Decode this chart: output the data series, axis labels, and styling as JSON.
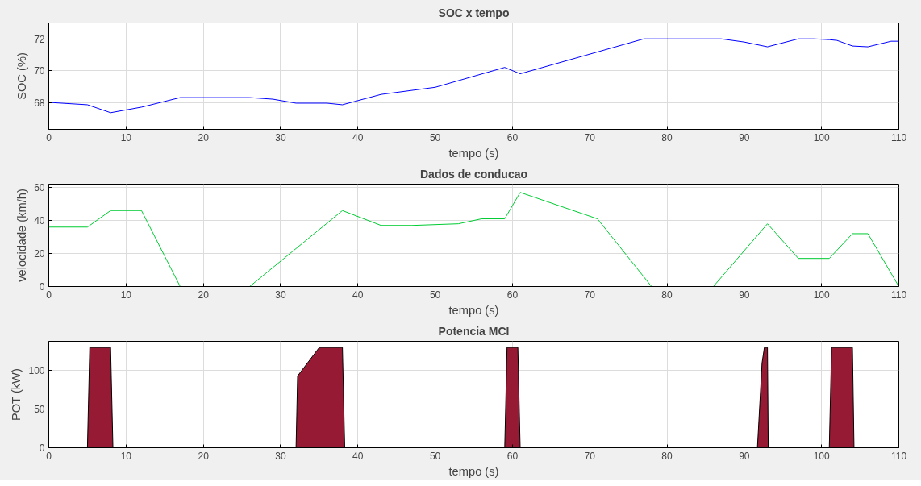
{
  "chart_data": [
    {
      "type": "line",
      "title": "SOC x tempo",
      "xlabel": "tempo (s)",
      "ylabel": "SOC (%)",
      "xlim": [
        0,
        110
      ],
      "xticks": [
        0,
        10,
        20,
        30,
        40,
        50,
        60,
        70,
        80,
        90,
        100,
        110
      ],
      "ylim": [
        66.3,
        73
      ],
      "yticks": [
        68,
        70,
        72
      ],
      "grid": true,
      "x": [
        0,
        5,
        8,
        12,
        17,
        26,
        29,
        32,
        36,
        38,
        43,
        50,
        59,
        61,
        77,
        87,
        90,
        93,
        97,
        99,
        101,
        102,
        104,
        106,
        109,
        110
      ],
      "series": [
        {
          "color": "#0000ff",
          "values": [
            68,
            67.85,
            67.35,
            67.7,
            68.3,
            68.3,
            68.2,
            67.95,
            67.95,
            67.85,
            68.5,
            68.95,
            70.2,
            69.8,
            72,
            72,
            71.8,
            71.5,
            72,
            72,
            71.95,
            71.9,
            71.55,
            71.5,
            71.85,
            71.85
          ]
        }
      ]
    },
    {
      "type": "line",
      "title": "Dados de conducao",
      "xlabel": "tempo (s)",
      "ylabel": "velocidade (km/h)",
      "xlim": [
        0,
        110
      ],
      "xticks": [
        0,
        10,
        20,
        30,
        40,
        50,
        60,
        70,
        80,
        90,
        100,
        110
      ],
      "ylim": [
        0,
        62
      ],
      "yticks": [
        0,
        20,
        40,
        60
      ],
      "grid": true,
      "x": [
        0,
        5,
        8,
        12,
        17,
        26,
        38,
        43,
        47,
        50,
        53,
        56,
        59,
        61,
        71,
        78,
        86,
        93,
        97,
        101,
        104,
        106,
        110
      ],
      "series": [
        {
          "color": "#00cc33",
          "values": [
            36,
            36,
            46,
            46,
            0,
            0,
            46,
            37,
            37,
            37.5,
            38,
            41,
            41,
            57,
            41,
            0,
            0,
            38,
            17,
            17,
            32,
            32,
            0
          ]
        }
      ]
    },
    {
      "type": "area",
      "title": "Potencia MCI",
      "xlabel": "tempo (s)",
      "ylabel": "POT (kW)",
      "xlim": [
        0,
        110
      ],
      "xticks": [
        0,
        10,
        20,
        30,
        40,
        50,
        60,
        70,
        80,
        90,
        100,
        110
      ],
      "ylim": [
        0,
        138
      ],
      "yticks": [
        0,
        50,
        100
      ],
      "grid": true,
      "x": [
        0,
        5,
        5.3,
        8,
        8.3,
        32,
        32.2,
        35,
        38,
        38.3,
        59,
        59.3,
        60.7,
        61,
        91.7,
        92.3,
        92.6,
        93,
        93.1,
        101,
        101.3,
        104,
        104.2,
        110
      ],
      "series": [
        {
          "color": "#961a33",
          "values": [
            0,
            0,
            130,
            130,
            0,
            0,
            93,
            130,
            130,
            0,
            0,
            130,
            130,
            0,
            0,
            110,
            130,
            130,
            0,
            0,
            130,
            130,
            0,
            0
          ]
        }
      ]
    }
  ]
}
